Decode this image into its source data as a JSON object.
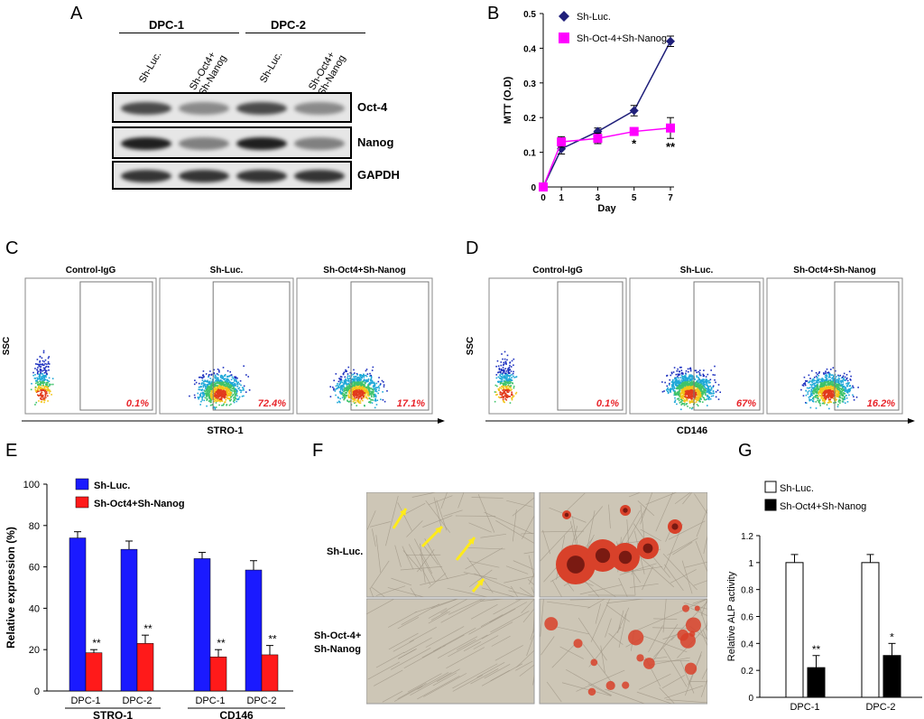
{
  "panels": {
    "a": "A",
    "b": "B",
    "c": "C",
    "d": "D",
    "e": "E",
    "f": "F",
    "g": "G"
  },
  "western_blot": {
    "groups": [
      "DPC-1",
      "DPC-2"
    ],
    "lanes": [
      "Sh-Luc.",
      "Sh-Oct4+\nSh-Nanog",
      "Sh-Luc.",
      "Sh-Oct4+\nSh-Nanog"
    ],
    "bands": [
      {
        "label": "Oct-4",
        "intensity": [
          0.75,
          0.45,
          0.75,
          0.45
        ]
      },
      {
        "label": "Nanog",
        "intensity": [
          0.95,
          0.5,
          0.95,
          0.5
        ]
      },
      {
        "label": "GAPDH",
        "intensity": [
          0.85,
          0.85,
          0.85,
          0.85
        ]
      }
    ]
  },
  "flow_c": {
    "plots": [
      {
        "title": "Control-IgG",
        "percent": "0.1%"
      },
      {
        "title": "Sh-Luc.",
        "percent": "72.4%"
      },
      {
        "title": "Sh-Oct4+Sh-Nanog",
        "percent": "17.1%"
      }
    ],
    "ylabel": "SSC",
    "xlabel": "STRO-1"
  },
  "flow_d": {
    "plots": [
      {
        "title": "Control-IgG",
        "percent": "0.1%"
      },
      {
        "title": "Sh-Luc.",
        "percent": "67%"
      },
      {
        "title": "Sh-Oct4+Sh-Nanog",
        "percent": "16.2%"
      }
    ],
    "ylabel": "SSC",
    "xlabel": "CD146"
  },
  "micrographs": {
    "row_labels": [
      "Sh-Luc.",
      "Sh-Oct-4+\nSh-Nanog"
    ],
    "colors": {
      "bright": "#cdc6b6",
      "bright_dark": "#9d9484",
      "red": "#d8412a",
      "red_dark": "#7a1a12"
    }
  },
  "colors": {
    "navy": "#1f1f7a",
    "magenta": "#ff00ff",
    "blue": "#1a1aff",
    "red": "#ff1a1a",
    "pct": "#e8242a",
    "yellow": "#ffeb1a"
  },
  "chart_data": [
    {
      "type": "line",
      "panel": "B",
      "x": [
        0,
        1,
        3,
        5,
        7
      ],
      "xlabel": "Day",
      "ylabel": "MTT (O.D)",
      "ylim": [
        0,
        0.5
      ],
      "yticks": [
        "0",
        "0.1",
        "0.2",
        "0.3",
        "0.4",
        "0.5"
      ],
      "series": [
        {
          "name": "Sh-Luc.",
          "values": [
            0,
            0.11,
            0.16,
            0.22,
            0.42
          ],
          "errors": [
            0.005,
            0.015,
            0.01,
            0.015,
            0.015
          ],
          "color": "#1f1f7a",
          "marker": "diamond"
        },
        {
          "name": "Sh-Oct-4+Sh-Nanog",
          "values": [
            0,
            0.13,
            0.14,
            0.16,
            0.17
          ],
          "errors": [
            0.005,
            0.015,
            0.015,
            0.01,
            0.03
          ],
          "color": "#ff00ff",
          "marker": "square"
        }
      ],
      "annotations": [
        {
          "x": 5,
          "text": "*"
        },
        {
          "x": 7,
          "text": "**"
        }
      ]
    },
    {
      "type": "bar",
      "panel": "E",
      "categories": [
        "DPC-1",
        "DPC-2",
        "DPC-1",
        "DPC-2"
      ],
      "groups": [
        "STRO-1",
        "CD146"
      ],
      "ylabel": "Relative expression (%)",
      "ylim": [
        0,
        100
      ],
      "yticks": [
        "0",
        "20",
        "40",
        "60",
        "80",
        "100"
      ],
      "series": [
        {
          "name": "Sh-Luc.",
          "values": [
            74,
            68.5,
            64,
            58.5
          ],
          "errors": [
            3,
            4,
            3,
            4.5
          ],
          "color": "#1a1aff"
        },
        {
          "name": "Sh-Oct4+Sh-Nanog",
          "values": [
            18.5,
            23,
            16.5,
            17.5
          ],
          "errors": [
            1.5,
            4,
            3.5,
            4.5
          ],
          "color": "#ff1a1a"
        }
      ],
      "annotations": [
        "**",
        "**",
        "**",
        "**"
      ]
    },
    {
      "type": "bar",
      "panel": "G",
      "categories": [
        "DPC-1",
        "DPC-2"
      ],
      "ylabel": "Relative ALP activity",
      "ylim": [
        0,
        1.2
      ],
      "yticks": [
        "0",
        "0.2",
        "0.4",
        "0.6",
        "0.8",
        "1",
        "1.2"
      ],
      "series": [
        {
          "name": "Sh-Luc.",
          "values": [
            1,
            1
          ],
          "errors": [
            0.06,
            0.06
          ],
          "color": "#ffffff"
        },
        {
          "name": "Sh-Oct4+Sh-Nanog",
          "values": [
            0.22,
            0.31
          ],
          "errors": [
            0.09,
            0.09
          ],
          "color": "#000000"
        }
      ],
      "annotations": [
        "**",
        "*"
      ]
    }
  ]
}
